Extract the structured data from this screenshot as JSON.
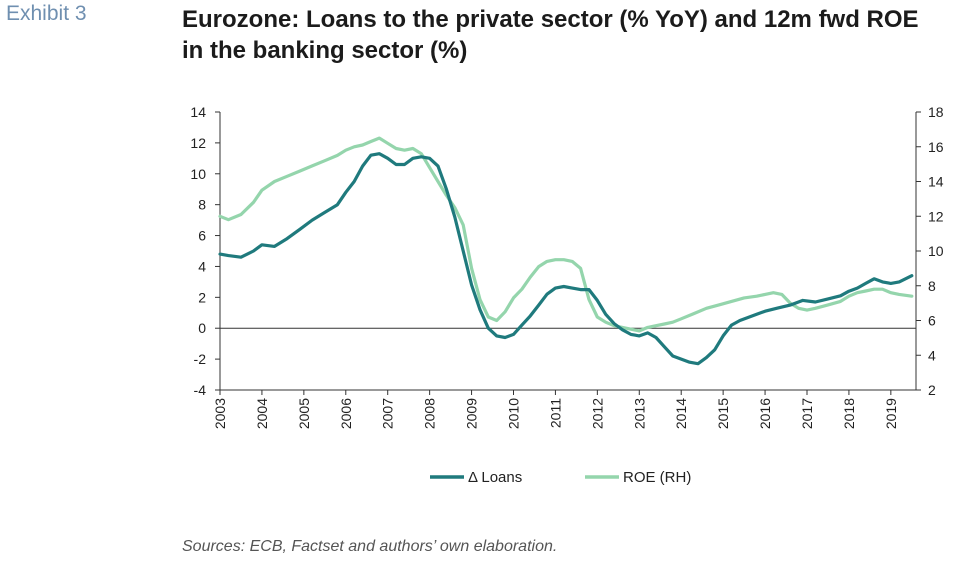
{
  "header": {
    "exhibit": "Exhibit 3",
    "title": "Eurozone: Loans to the private sector (% YoY) and 12m fwd ROE in the banking sector (%)"
  },
  "source": "Sources: ECB, Factset and authors’ own elaboration.",
  "colors": {
    "loans": "#1f7a7d",
    "roe": "#94d5ac",
    "axis": "#333333"
  },
  "chart_data": {
    "type": "line",
    "xlim": [
      2003,
      2019.6
    ],
    "x_ticks": [
      "2003",
      "2004",
      "2005",
      "2006",
      "2007",
      "2008",
      "2009",
      "2010",
      "2011",
      "2012",
      "2013",
      "2014",
      "2015",
      "2016",
      "2017",
      "2018",
      "2019"
    ],
    "y_left": {
      "lim": [
        -4,
        14
      ],
      "ticks": [
        -4,
        -2,
        0,
        2,
        4,
        6,
        8,
        10,
        12,
        14
      ]
    },
    "y_right": {
      "lim": [
        2,
        18
      ],
      "ticks": [
        2,
        4,
        6,
        8,
        10,
        12,
        14,
        16,
        18
      ]
    },
    "legend_position": "bottom",
    "series": [
      {
        "name": "Δ Loans",
        "axis": "left",
        "x": [
          2003.0,
          2003.2,
          2003.5,
          2003.8,
          2004.0,
          2004.3,
          2004.6,
          2004.9,
          2005.2,
          2005.5,
          2005.8,
          2006.0,
          2006.2,
          2006.4,
          2006.6,
          2006.8,
          2007.0,
          2007.2,
          2007.4,
          2007.6,
          2007.8,
          2008.0,
          2008.2,
          2008.4,
          2008.6,
          2008.8,
          2009.0,
          2009.2,
          2009.4,
          2009.6,
          2009.8,
          2010.0,
          2010.2,
          2010.4,
          2010.6,
          2010.8,
          2011.0,
          2011.2,
          2011.4,
          2011.6,
          2011.8,
          2012.0,
          2012.2,
          2012.4,
          2012.6,
          2012.8,
          2013.0,
          2013.2,
          2013.4,
          2013.6,
          2013.8,
          2014.0,
          2014.2,
          2014.4,
          2014.6,
          2014.8,
          2015.0,
          2015.2,
          2015.4,
          2015.6,
          2015.8,
          2016.0,
          2016.3,
          2016.6,
          2016.9,
          2017.2,
          2017.5,
          2017.8,
          2018.0,
          2018.2,
          2018.4,
          2018.6,
          2018.8,
          2019.0,
          2019.2,
          2019.5
        ],
        "values": [
          4.8,
          4.7,
          4.6,
          5.0,
          5.4,
          5.3,
          5.8,
          6.4,
          7.0,
          7.5,
          8.0,
          8.8,
          9.5,
          10.5,
          11.2,
          11.3,
          11.0,
          10.6,
          10.6,
          11.0,
          11.1,
          11.0,
          10.5,
          9.0,
          7.2,
          5.0,
          2.8,
          1.2,
          0.0,
          -0.5,
          -0.6,
          -0.4,
          0.2,
          0.8,
          1.5,
          2.2,
          2.6,
          2.7,
          2.6,
          2.5,
          2.5,
          1.8,
          0.9,
          0.3,
          -0.1,
          -0.4,
          -0.5,
          -0.3,
          -0.6,
          -1.2,
          -1.8,
          -2.0,
          -2.2,
          -2.3,
          -1.9,
          -1.4,
          -0.5,
          0.2,
          0.5,
          0.7,
          0.9,
          1.1,
          1.3,
          1.5,
          1.8,
          1.7,
          1.9,
          2.1,
          2.4,
          2.6,
          2.9,
          3.2,
          3.0,
          2.9,
          3.0,
          3.4
        ]
      },
      {
        "name": "ROE (RH)",
        "axis": "right",
        "x": [
          2003.0,
          2003.2,
          2003.5,
          2003.8,
          2004.0,
          2004.3,
          2004.6,
          2004.9,
          2005.2,
          2005.5,
          2005.8,
          2006.0,
          2006.2,
          2006.4,
          2006.6,
          2006.8,
          2007.0,
          2007.2,
          2007.4,
          2007.6,
          2007.8,
          2008.0,
          2008.2,
          2008.4,
          2008.6,
          2008.8,
          2009.0,
          2009.2,
          2009.4,
          2009.6,
          2009.8,
          2010.0,
          2010.2,
          2010.4,
          2010.6,
          2010.8,
          2011.0,
          2011.2,
          2011.4,
          2011.6,
          2011.8,
          2012.0,
          2012.2,
          2012.4,
          2012.6,
          2012.8,
          2013.0,
          2013.2,
          2013.4,
          2013.6,
          2013.8,
          2014.0,
          2014.3,
          2014.6,
          2014.9,
          2015.2,
          2015.5,
          2015.8,
          2016.0,
          2016.2,
          2016.4,
          2016.6,
          2016.8,
          2017.0,
          2017.2,
          2017.5,
          2017.8,
          2018.0,
          2018.2,
          2018.4,
          2018.6,
          2018.8,
          2019.0,
          2019.2,
          2019.5
        ],
        "values": [
          12.0,
          11.8,
          12.1,
          12.8,
          13.5,
          14.0,
          14.3,
          14.6,
          14.9,
          15.2,
          15.5,
          15.8,
          16.0,
          16.1,
          16.3,
          16.5,
          16.2,
          15.9,
          15.8,
          15.9,
          15.6,
          14.8,
          14.0,
          13.2,
          12.5,
          11.5,
          9.0,
          7.2,
          6.2,
          6.0,
          6.5,
          7.3,
          7.8,
          8.5,
          9.1,
          9.4,
          9.5,
          9.5,
          9.4,
          9.0,
          7.2,
          6.2,
          5.9,
          5.7,
          5.6,
          5.5,
          5.4,
          5.6,
          5.7,
          5.8,
          5.9,
          6.1,
          6.4,
          6.7,
          6.9,
          7.1,
          7.3,
          7.4,
          7.5,
          7.6,
          7.5,
          7.0,
          6.7,
          6.6,
          6.7,
          6.9,
          7.1,
          7.4,
          7.6,
          7.7,
          7.8,
          7.8,
          7.6,
          7.5,
          7.4
        ]
      }
    ]
  }
}
